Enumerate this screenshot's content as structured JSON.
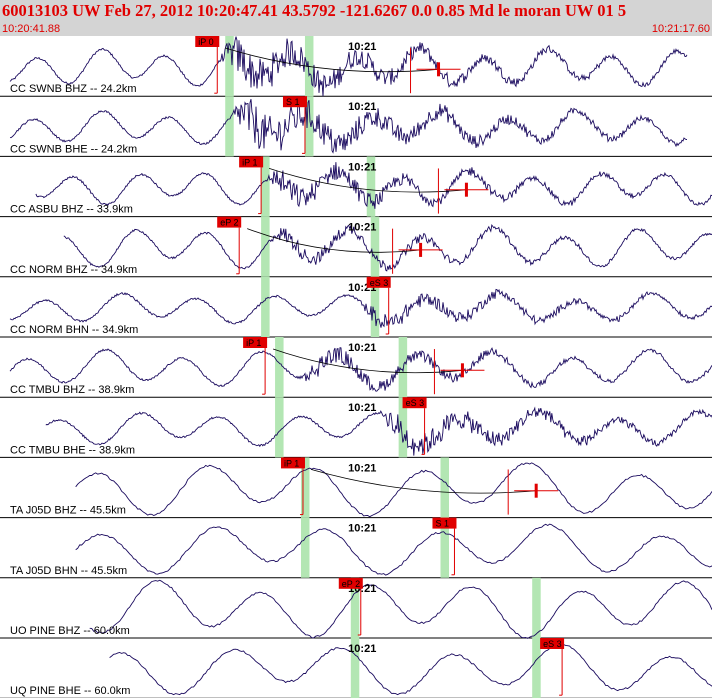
{
  "header": {
    "title": "60013103 UW Feb 27, 2012 10:20:47.41   43.5792 -121.6267   0.0 0.85 Md le moran UW 01   5",
    "start_time": "10:20:41.88",
    "end_time": "10:21:17.60"
  },
  "colors": {
    "trace": "#1a0a5e",
    "pick": "#e00000",
    "window": "#b3e6b3",
    "text": "#000000"
  },
  "chart_data": {
    "type": "line",
    "time_range": [
      "10:20:41.88",
      "10:21:17.60"
    ],
    "minute_marker": {
      "label": "10:21",
      "t": 18.12
    },
    "channels": [
      {
        "label": "CC SWNB BHZ -- 24.2km",
        "pick": {
          "label": "iP 0",
          "t": 10.9
        },
        "windows": [
          11.5,
          15.5
        ],
        "pick_side": "left",
        "coda_t": 22.0,
        "period": 3.2,
        "amp": 0.55,
        "start_t": 0.5,
        "end_t": 34.5,
        "noise_onset": 11.0,
        "noise_amp": 0.85
      },
      {
        "label": "CC SWNB BHE -- 24.2km",
        "pick": {
          "label": "S 1",
          "t": 15.3
        },
        "windows": [
          11.5,
          15.5
        ],
        "pick_side": "left",
        "coda_t": null,
        "period": 3.4,
        "amp": 0.5,
        "start_t": 0.5,
        "end_t": 34.5,
        "noise_onset": 11.5,
        "noise_amp": 0.95
      },
      {
        "label": "CC ASBU BHZ -- 33.9km",
        "pick": {
          "label": "iP 1",
          "t": 13.1
        },
        "windows": [
          13.3,
          18.6
        ],
        "pick_side": "left",
        "coda_t": 23.4,
        "period": 3.3,
        "amp": 0.5,
        "start_t": 1.8,
        "end_t": 36.0,
        "noise_onset": 13.2,
        "noise_amp": 0.55
      },
      {
        "label": "CC NORM BHZ -- 34.9km",
        "pick": {
          "label": "eP 2",
          "t": 12.0
        },
        "windows": [
          13.3,
          18.8
        ],
        "pick_side": "left",
        "coda_t": 21.1,
        "period": 3.6,
        "amp": 0.6,
        "start_t": 3.2,
        "end_t": 36.0,
        "noise_onset": 13.4,
        "noise_amp": 0.35
      },
      {
        "label": "CC NORM BHN -- 34.9km",
        "pick": {
          "label": "eS 3",
          "t": 19.5
        },
        "windows": [
          13.3,
          18.8
        ],
        "pick_side": "left",
        "coda_t": null,
        "period": 3.8,
        "amp": 0.45,
        "start_t": 0.5,
        "end_t": 36.0,
        "noise_onset": 18.0,
        "noise_amp": 0.4
      },
      {
        "label": "CC TMBU BHZ -- 38.9km",
        "pick": {
          "label": "iP 1",
          "t": 13.3
        },
        "windows": [
          14.0,
          20.2
        ],
        "pick_side": "left",
        "coda_t": 23.2,
        "period": 3.9,
        "amp": 0.55,
        "start_t": 0.5,
        "end_t": 36.5,
        "noise_onset": 15.0,
        "noise_amp": 0.4
      },
      {
        "label": "CC TMBU BHE -- 38.9km",
        "pick": {
          "label": "eS 3",
          "t": 21.3
        },
        "windows": [
          14.0,
          20.2
        ],
        "pick_side": "left",
        "coda_t": null,
        "period": 4.0,
        "amp": 0.5,
        "start_t": 2.3,
        "end_t": 36.5,
        "noise_onset": 19.0,
        "noise_amp": 0.6
      },
      {
        "label": "TA J05D BHZ -- 45.5km",
        "pick": {
          "label": "iP 1",
          "t": 15.2
        },
        "windows": [
          15.3,
          22.3
        ],
        "pick_side": "left",
        "coda_t": 26.9,
        "period": 5.4,
        "amp": 0.8,
        "start_t": 3.8,
        "end_t": 37.8,
        "noise_onset": 99.0,
        "noise_amp": 0.0
      },
      {
        "label": "TA J05D BHN -- 45.5km",
        "pick": {
          "label": "S 1",
          "t": 22.8
        },
        "windows": [
          15.3,
          22.3
        ],
        "pick_side": "left",
        "coda_t": null,
        "period": 5.6,
        "amp": 0.75,
        "start_t": 3.8,
        "end_t": 37.8,
        "noise_onset": 99.0,
        "noise_amp": 0.0
      },
      {
        "label": "UO PINE BHZ -- 60.0km",
        "pick": {
          "label": "eP 2",
          "t": 18.1
        },
        "windows": [
          17.8,
          26.9
        ],
        "pick_side": "left",
        "coda_t": null,
        "period": 5.3,
        "amp": 0.85,
        "start_t": 4.5,
        "end_t": 40.0,
        "noise_onset": 99.0,
        "noise_amp": 0.0
      },
      {
        "label": "UQ PINE BHE -- 60.0km",
        "pick": {
          "label": "eS 3",
          "t": 28.2
        },
        "windows": [
          17.8,
          26.9
        ],
        "pick_side": "left",
        "coda_t": null,
        "period": 5.5,
        "amp": 0.75,
        "start_t": 5.5,
        "end_t": 40.0,
        "noise_onset": 99.0,
        "noise_amp": 0.0
      }
    ]
  }
}
